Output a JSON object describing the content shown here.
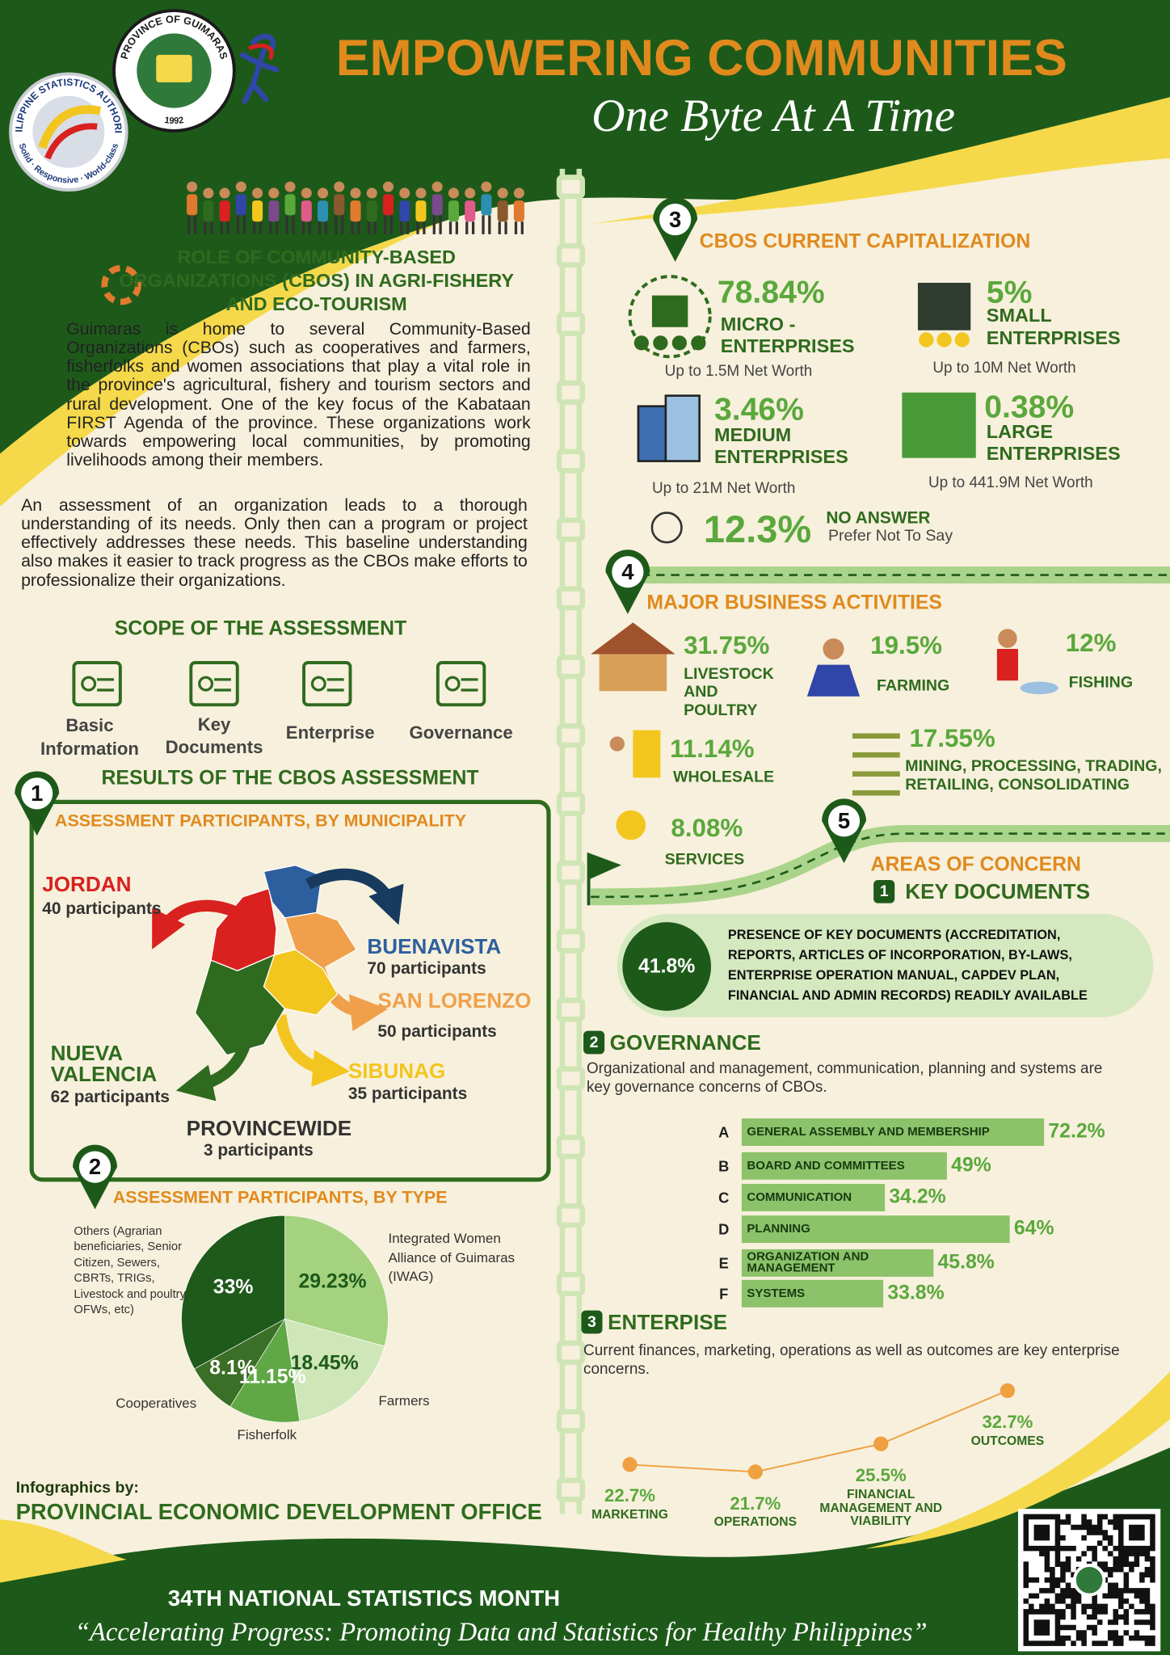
{
  "header": {
    "title": "EMPOWERING COMMUNITIES",
    "subtitle": "One Byte At A Time",
    "psa_logo": {
      "name": "PHILIPPINE STATISTICS AUTHORITY",
      "motto": "Solid · Responsive · World-class"
    },
    "province_seal": {
      "name": "PROVINCE OF GUIMARAS",
      "year": "1992"
    }
  },
  "role": {
    "title": "ROLE OF COMMUNITY-BASED ORGANIZATIONS (CBOS) IN AGRI-FISHERY AND ECO-TOURISM",
    "paragraphs": [
      "Guimaras is home to several Community-Based Organizations (CBOs) such as cooperatives and farmers, fisherfolks and women associations that play a vital role in the province's agricultural, fishery and tourism sectors and rural development. One of the key focus of the Kabataan FIRST Agenda of the province. These organizations work towards empowering local communities, by promoting livelihoods among their members.",
      "An assessment of an organization leads to a thorough understanding of its needs. Only then can a program or project effectively addresses these needs. This baseline understanding also makes it easier to track progress as the CBOs make efforts to professionalize their organizations."
    ]
  },
  "scope": {
    "title": "SCOPE OF THE ASSESSMENT",
    "items": [
      "Basic Information",
      "Key Documents",
      "Enterprise",
      "Governance"
    ]
  },
  "results": {
    "title": "RESULTS OF THE CBOS ASSESSMENT",
    "by_municipality": {
      "number": "1",
      "title": "ASSESSMENT PARTICIPANTS, BY MUNICIPALITY",
      "municipalities": [
        {
          "name": "JORDAN",
          "participants": "40 participants",
          "color": "#d9211f"
        },
        {
          "name": "BUENAVISTA",
          "participants": "70 participants",
          "color": "#2d5f9e"
        },
        {
          "name": "SAN LORENZO",
          "participants": "50 participants",
          "color": "#f0a04a"
        },
        {
          "name": "SIBUNAG",
          "participants": "35 participants",
          "color": "#f2c61f"
        },
        {
          "name": "NUEVA VALENCIA",
          "participants": "62 participants",
          "color": "#2f6b1e"
        },
        {
          "name": "PROVINCEWIDE",
          "participants": "3 participants",
          "color": "#333333"
        }
      ]
    },
    "by_type": {
      "number": "2",
      "title": "ASSESSMENT PARTICIPANTS, BY TYPE",
      "chart": {
        "type": "pie",
        "categories": [
          "Integrated Women Alliance of Guimaras (IWAG)",
          "Farmers",
          "Fisherfolk",
          "Cooperatives",
          "Others (Agrarian beneficiaries, Senior Citizen, Sewers, CBRTs, TRIGs, Livestock and poultry, OFWs, etc)"
        ],
        "values": [
          29.23,
          18.45,
          11.15,
          8.1,
          33
        ],
        "value_labels": [
          "29.23%",
          "18.45%",
          "11.15%",
          "8.1%",
          "33%"
        ],
        "colors": [
          "#a5d27f",
          "#cfe6b8",
          "#5fa845",
          "#3b6e26",
          "#1e5a1a"
        ]
      }
    }
  },
  "capitalization": {
    "number": "3",
    "title": "CBOS CURRENT CAPITALIZATION",
    "items": [
      {
        "value": "78.84%",
        "label": "MICRO - ENTERPRISES",
        "note": "Up to 1.5M Net Worth"
      },
      {
        "value": "5%",
        "label": "SMALL ENTERPRISES",
        "note": "Up to 10M Net Worth"
      },
      {
        "value": "3.46%",
        "label": "MEDIUM ENTERPRISES",
        "note": "Up to 21M Net Worth"
      },
      {
        "value": "0.38%",
        "label": "LARGE ENTERPRISES",
        "note": "Up to 441.9M Net Worth"
      },
      {
        "value": "12.3%",
        "label": "NO ANSWER",
        "note": "Prefer Not To Say"
      }
    ]
  },
  "business_activities": {
    "number": "4",
    "title": "MAJOR BUSINESS ACTIVITIES",
    "items": [
      {
        "value": "31.75%",
        "label": "LIVESTOCK AND POULTRY"
      },
      {
        "value": "19.5%",
        "label": "FARMING"
      },
      {
        "value": "12%",
        "label": "FISHING"
      },
      {
        "value": "11.14%",
        "label": "WHOLESALE"
      },
      {
        "value": "17.55%",
        "label": "MINING, PROCESSING, TRADING, RETAILING, CONSOLIDATING"
      },
      {
        "value": "8.08%",
        "label": "SERVICES"
      }
    ]
  },
  "areas_of_concern": {
    "number": "5",
    "title": "AREAS OF CONCERN",
    "key_documents": {
      "number": "1",
      "title": "KEY DOCUMENTS",
      "value": "41.8%",
      "text": "PRESENCE OF KEY DOCUMENTS (ACCREDITATION, REPORTS, ARTICLES OF INCORPORATION, BY-LAWS, ENTERPRISE OPERATION MANUAL, CAPDEV PLAN, FINANCIAL AND ADMIN RECORDS) READILY AVAILABLE"
    },
    "governance": {
      "number": "2",
      "title": "GOVERNANCE",
      "text": "Organizational and management, communication, planning and systems are key governance concerns of CBOs.",
      "chart": {
        "type": "bar",
        "letters": [
          "A",
          "B",
          "C",
          "D",
          "E",
          "F"
        ],
        "categories": [
          "GENERAL ASSEMBLY AND MEMBERSHIP",
          "BOARD AND COMMITTEES",
          "COMMUNICATION",
          "PLANNING",
          "ORGANIZATION AND MANAGEMENT",
          "SYSTEMS"
        ],
        "values": [
          72.2,
          49,
          34.2,
          64,
          45.8,
          33.8
        ],
        "value_labels": [
          "72.2%",
          "49%",
          "34.2%",
          "64%",
          "45.8%",
          "33.8%"
        ],
        "color": "#8cc26a"
      }
    },
    "enterprise": {
      "number": "3",
      "title": "ENTERPISE",
      "text": "Current finances, marketing, operations as well as outcomes are key enterprise concerns.",
      "chart": {
        "type": "line",
        "categories": [
          "MARKETING",
          "OPERATIONS",
          "FINANCIAL MANAGEMENT AND VIABILITY",
          "OUTCOMES"
        ],
        "values": [
          22.7,
          21.7,
          25.5,
          32.7
        ],
        "value_labels": [
          "22.7%",
          "21.7%",
          "25.5%",
          "32.7%"
        ],
        "color": "#f0a040"
      }
    }
  },
  "footer": {
    "credit_label": "Infographics by:",
    "credit": "PROVINCIAL ECONOMIC DEVELOPMENT OFFICE",
    "event": "34TH NATIONAL STATISTICS MONTH",
    "theme": "“Accelerating Progress: Promoting Data and Statistics for Healthy Philippines”"
  }
}
